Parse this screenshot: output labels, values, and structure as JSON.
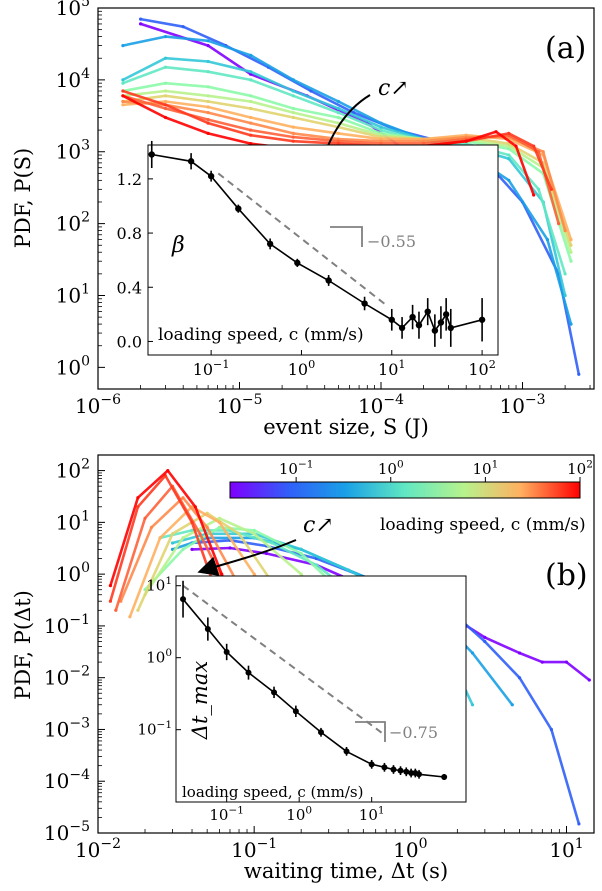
{
  "figure": {
    "panel_a": {
      "label": "(a)",
      "xlabel": "event size, S (J)",
      "ylabel": "PDF, P(S)",
      "arrow_label": "c↗",
      "inset": {
        "ylabel": "β",
        "xlabel": "loading speed, c (mm/s)",
        "slope_label": "−0.55"
      }
    },
    "panel_b": {
      "label": "(b)",
      "xlabel": "waiting time, Δt (s)",
      "ylabel": "PDF, P(Δt)",
      "arrow_label": "c↗",
      "colorbar_label": "loading speed, c (mm/s)",
      "inset": {
        "ylabel": "Δt_max",
        "xlabel": "loading speed, c (mm/s)",
        "slope_label": "−0.75"
      }
    },
    "series_colors": [
      "#7f00ff",
      "#3060f8",
      "#1aa0e6",
      "#33c8d8",
      "#60e8c2",
      "#8cf9a8",
      "#b8f28c",
      "#e0d470",
      "#ffb060",
      "#ff8a4a",
      "#ff6038",
      "#ff3a20",
      "#ff0000"
    ]
  },
  "chart_data": [
    {
      "type": "line",
      "title": "(a)",
      "xlabel": "event size, S (J)",
      "ylabel": "PDF, P(S)",
      "xscale": "log",
      "yscale": "log",
      "xlim": [
        1e-06,
        0.0032
      ],
      "ylim": [
        0.5,
        100000.0
      ],
      "xticks": [
        "10^-6",
        "10^-5",
        "10^-4",
        "10^-3"
      ],
      "yticks": [
        "10^0",
        "10^1",
        "10^2",
        "10^3",
        "10^4",
        "10^5"
      ],
      "series": [
        {
          "color": "#7f00ff",
          "x": [
            2e-06,
            6e-06,
            1.2e-05,
            3e-05,
            8e-05,
            0.0002,
            0.0004,
            0.00065
          ],
          "y": [
            60000,
            30000,
            12000,
            6000,
            2500,
            700,
            80,
            9
          ]
        },
        {
          "color": "#3060f8",
          "x": [
            2e-06,
            4e-06,
            8e-06,
            1.6e-05,
            3.2e-05,
            6.4e-05,
            0.00013,
            0.00026,
            0.0005,
            0.001,
            0.0018,
            0.0025
          ],
          "y": [
            70000,
            55000,
            30000,
            15000,
            7000,
            3500,
            2000,
            1400,
            900,
            200,
            20,
            0.8
          ]
        },
        {
          "color": "#1aa0e6",
          "x": [
            1.5e-06,
            3e-06,
            6e-06,
            1.2e-05,
            2.4e-05,
            5e-05,
            0.0001,
            0.0002,
            0.0004,
            0.0008,
            0.0015,
            0.0022
          ],
          "y": [
            30000,
            40000,
            35000,
            22000,
            10000,
            5000,
            2500,
            1500,
            1000,
            400,
            60,
            4
          ]
        },
        {
          "color": "#33c8d8",
          "x": [
            1.5e-06,
            3e-06,
            6e-06,
            1.2e-05,
            2.4e-05,
            5e-05,
            0.0001,
            0.0002,
            0.0004,
            0.0008,
            0.0014,
            0.002
          ],
          "y": [
            10000,
            20000,
            18000,
            13000,
            7000,
            4000,
            2200,
            1500,
            1200,
            800,
            200,
            10
          ]
        },
        {
          "color": "#60e8c2",
          "x": [
            1.5e-06,
            3e-06,
            6e-06,
            1.2e-05,
            2.4e-05,
            5e-05,
            0.0001,
            0.0002,
            0.0004,
            0.0008,
            0.0013,
            0.002
          ],
          "y": [
            9000,
            15000,
            13000,
            10000,
            6000,
            3500,
            2000,
            1400,
            1300,
            900,
            300,
            20
          ]
        },
        {
          "color": "#8cf9a8",
          "x": [
            1.5e-06,
            3e-06,
            6e-06,
            1.2e-05,
            2.4e-05,
            5e-05,
            0.0001,
            0.0002,
            0.0004,
            0.0008,
            0.0014,
            0.0022
          ],
          "y": [
            7000,
            9000,
            8000,
            6000,
            4000,
            3000,
            1800,
            1500,
            1400,
            1100,
            500,
            30
          ]
        },
        {
          "color": "#b8f28c",
          "x": [
            1.5e-06,
            3e-06,
            6e-06,
            1.2e-05,
            2.4e-05,
            5e-05,
            0.0001,
            0.0002,
            0.0004,
            0.0008,
            0.0014,
            0.0022
          ],
          "y": [
            6000,
            7000,
            6000,
            5000,
            3500,
            2500,
            1700,
            1500,
            1500,
            1200,
            600,
            40
          ]
        },
        {
          "color": "#e0d470",
          "x": [
            1.5e-06,
            3e-06,
            6e-06,
            1.2e-05,
            2.4e-05,
            5e-05,
            0.0001,
            0.0002,
            0.0004,
            0.0008,
            0.0014,
            0.0022
          ],
          "y": [
            5000,
            6000,
            5000,
            4000,
            3000,
            2200,
            1600,
            1500,
            1600,
            1300,
            700,
            50
          ]
        },
        {
          "color": "#ffb060",
          "x": [
            1.5e-06,
            3e-06,
            6e-06,
            1.2e-05,
            2.4e-05,
            5e-05,
            0.0001,
            0.0002,
            0.0004,
            0.0008,
            0.0014,
            0.0022
          ],
          "y": [
            4500,
            5000,
            4200,
            3000,
            2200,
            1800,
            1500,
            1500,
            1700,
            1500,
            900,
            60
          ]
        },
        {
          "color": "#ff8a4a",
          "x": [
            1.5e-06,
            3e-06,
            6e-06,
            1.2e-05,
            2.4e-05,
            5e-05,
            0.0001,
            0.0002,
            0.0004,
            0.0008,
            0.0014,
            0.002
          ],
          "y": [
            5000,
            4500,
            3500,
            2500,
            1800,
            1500,
            1400,
            1400,
            1600,
            1600,
            1000,
            80
          ]
        },
        {
          "color": "#ff6038",
          "x": [
            1.5e-06,
            3e-06,
            6e-06,
            1.2e-05,
            2.4e-05,
            5e-05,
            0.0001,
            0.0002,
            0.0004,
            0.0008,
            0.0013,
            0.0018
          ],
          "y": [
            6000,
            4000,
            2800,
            2000,
            1600,
            1400,
            1300,
            1300,
            1500,
            1700,
            1000,
            100
          ]
        },
        {
          "color": "#ff3a20",
          "x": [
            1.5e-06,
            3e-06,
            6e-06,
            1.2e-05,
            2.4e-05,
            5e-05,
            0.0001,
            0.0002,
            0.0004,
            0.0008,
            0.0012,
            0.0016
          ],
          "y": [
            7000,
            4500,
            2500,
            1700,
            1400,
            1300,
            1200,
            1200,
            1400,
            1800,
            1200,
            300
          ]
        },
        {
          "color": "#ff0000",
          "x": [
            1.5e-06,
            3e-06,
            6e-06,
            1.2e-05,
            2.4e-05,
            5e-05,
            0.0001,
            0.0002,
            0.0004,
            0.00065,
            0.0009,
            0.0012
          ],
          "y": [
            6000,
            3000,
            1800,
            1300,
            1100,
            1100,
            1100,
            1200,
            1400,
            1900,
            1200,
            250
          ]
        }
      ],
      "inset": {
        "type": "scatter",
        "xlabel": "loading speed, c (mm/s)",
        "ylabel": "β",
        "xscale": "log",
        "xlim": [
          0.02,
          150
        ],
        "ylim": [
          -0.1,
          1.45
        ],
        "xticks": [
          "10^-1",
          "10^0",
          "10^1",
          "10^2"
        ],
        "yticks": [
          "0.0",
          "0.4",
          "0.8",
          "1.2"
        ],
        "x": [
          0.022,
          0.06,
          0.1,
          0.2,
          0.45,
          0.9,
          2.0,
          5.0,
          10.0,
          13.0,
          17.0,
          20.0,
          25.0,
          30.0,
          35.0,
          40.0,
          45.0,
          100.0
        ],
        "y": [
          1.38,
          1.33,
          1.22,
          0.98,
          0.72,
          0.58,
          0.45,
          0.28,
          0.16,
          0.1,
          0.18,
          0.12,
          0.22,
          0.08,
          0.14,
          0.2,
          0.1,
          0.16
        ],
        "yerr": [
          0.1,
          0.06,
          0.04,
          0.03,
          0.04,
          0.03,
          0.04,
          0.05,
          0.08,
          0.08,
          0.09,
          0.1,
          0.1,
          0.12,
          0.12,
          0.12,
          0.14,
          0.16
        ],
        "reference_slope": -0.55
      }
    },
    {
      "type": "line",
      "title": "(b)",
      "xlabel": "waiting time, Δt (s)",
      "ylabel": "PDF, P(Δt)",
      "xscale": "log",
      "yscale": "log",
      "xlim": [
        0.01,
        15
      ],
      "ylim": [
        1e-05,
        200
      ],
      "xticks": [
        "10^-2",
        "10^-1",
        "10^0",
        "10^1"
      ],
      "yticks": [
        "10^-5",
        "10^-4",
        "10^-3",
        "10^-2",
        "10^-1",
        "10^0",
        "10^1",
        "10^2"
      ],
      "colorbar": {
        "label": "loading speed, c (mm/s)",
        "range": [
          0.02,
          100
        ],
        "ticks": [
          "10^-1",
          "10^0",
          "10^1",
          "10^2"
        ]
      },
      "series": [
        {
          "color": "#7f00ff",
          "x": [
            0.04,
            0.07,
            0.12,
            0.25,
            0.5,
            1.0,
            2.0,
            3.0,
            5.0,
            7.0,
            10.0,
            14.0
          ],
          "y": [
            3,
            3.2,
            2.5,
            1.5,
            0.6,
            0.3,
            0.13,
            0.06,
            0.03,
            0.02,
            0.02,
            0.009
          ]
        },
        {
          "color": "#3060f8",
          "x": [
            0.04,
            0.07,
            0.12,
            0.25,
            0.5,
            1.0,
            2.0,
            3.0,
            5.0,
            8.0,
            12.0
          ],
          "y": [
            4,
            4.5,
            3.5,
            2.0,
            0.9,
            0.4,
            0.15,
            0.05,
            0.01,
            0.001,
            1.5e-05
          ]
        },
        {
          "color": "#1aa0e6",
          "x": [
            0.03,
            0.05,
            0.1,
            0.2,
            0.4,
            0.8,
            1.5,
            2.5,
            4.5
          ],
          "y": [
            3,
            5,
            5,
            3,
            1.2,
            0.5,
            0.15,
            0.03,
            0.003
          ]
        },
        {
          "color": "#33c8d8",
          "x": [
            0.03,
            0.05,
            0.1,
            0.2,
            0.4,
            0.8,
            1.5,
            2.5
          ],
          "y": [
            4,
            6,
            6,
            3,
            1.2,
            0.4,
            0.08,
            0.003
          ]
        },
        {
          "color": "#60e8c2",
          "x": [
            0.025,
            0.04,
            0.07,
            0.13,
            0.25,
            0.5,
            0.9,
            1.3
          ],
          "y": [
            5,
            7,
            7,
            4,
            1.5,
            0.3,
            0.03,
            0.003
          ]
        },
        {
          "color": "#8cf9a8",
          "x": [
            0.02,
            0.035,
            0.06,
            0.1,
            0.2,
            0.35,
            0.6
          ],
          "y": [
            0.5,
            3,
            8,
            7,
            2.5,
            0.5,
            0.03
          ]
        },
        {
          "color": "#b8f28c",
          "x": [
            0.02,
            0.035,
            0.06,
            0.1,
            0.2,
            0.3
          ],
          "y": [
            0.4,
            5,
            12,
            6,
            1.0,
            0.1
          ]
        },
        {
          "color": "#e0d470",
          "x": [
            0.018,
            0.03,
            0.05,
            0.08,
            0.13,
            0.2
          ],
          "y": [
            0.2,
            6,
            15,
            6,
            0.7,
            0.05
          ]
        },
        {
          "color": "#ffb060",
          "x": [
            0.016,
            0.025,
            0.04,
            0.06,
            0.1,
            0.15
          ],
          "y": [
            0.15,
            5,
            20,
            10,
            1.0,
            0.1
          ]
        },
        {
          "color": "#ff8a4a",
          "x": [
            0.014,
            0.022,
            0.035,
            0.05,
            0.08,
            0.12
          ],
          "y": [
            0.3,
            8,
            30,
            8,
            0.6,
            0.03
          ]
        },
        {
          "color": "#ff6038",
          "x": [
            0.013,
            0.02,
            0.03,
            0.045,
            0.07,
            0.1
          ],
          "y": [
            0.2,
            12,
            50,
            6,
            0.4,
            0.01
          ]
        },
        {
          "color": "#ff3a20",
          "x": [
            0.012,
            0.018,
            0.027,
            0.04,
            0.06,
            0.085
          ],
          "y": [
            0.3,
            20,
            80,
            10,
            0.3,
            0.02
          ]
        },
        {
          "color": "#ff0000",
          "x": [
            0.012,
            0.018,
            0.028,
            0.042,
            0.062,
            0.09
          ],
          "y": [
            0.6,
            30,
            100,
            20,
            1.0,
            0.05
          ]
        }
      ],
      "inset": {
        "type": "scatter",
        "xlabel": "loading speed, c (mm/s)",
        "ylabel": "Δt_max",
        "xscale": "log",
        "yscale": "log",
        "xlim": [
          0.02,
          200
        ],
        "ylim": [
          0.02,
          12
        ],
        "xticks": [
          "10^-1",
          "10^0",
          "10^1"
        ],
        "yticks": [
          "10^-1",
          "10^0",
          "10^1"
        ],
        "x": [
          0.025,
          0.055,
          0.1,
          0.2,
          0.45,
          0.9,
          2.0,
          4.5,
          10.0,
          15.0,
          20.0,
          25.0,
          30.0,
          35.0,
          40.0,
          45.0,
          100.0
        ],
        "y": [
          6.5,
          2.5,
          1.2,
          0.62,
          0.33,
          0.18,
          0.092,
          0.05,
          0.033,
          0.03,
          0.028,
          0.027,
          0.026,
          0.025,
          0.025,
          0.024,
          0.022
        ],
        "yerr_factor": [
          1.8,
          1.45,
          1.3,
          1.25,
          1.2,
          1.2,
          1.15,
          1.15,
          1.15,
          1.15,
          1.15,
          1.15,
          1.15,
          1.15,
          1.15,
          1.15,
          1.1
        ],
        "reference_slope": -0.75
      }
    }
  ]
}
